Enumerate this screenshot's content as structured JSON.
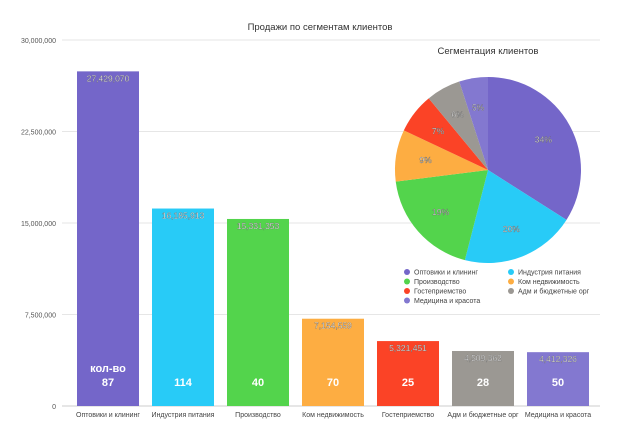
{
  "chart_data": [
    {
      "type": "bar",
      "title": "Продажи по сегментам клиентов",
      "categories": [
        "Оптовики и клининг",
        "Индустрия питания",
        "Производство",
        "Ком недвижимость",
        "Гостеприемство",
        "Адм и бюджетные орг",
        "Медицина и красота"
      ],
      "values": [
        27429070,
        16185913,
        15331353,
        7154559,
        5321451,
        4509362,
        4412326
      ],
      "value_labels": [
        "27,429,070",
        "16,185,913",
        "15,331,353",
        "7,154,559",
        "5,321,451",
        "4,509,362",
        "4,412,326"
      ],
      "counts_label": "кол-во",
      "counts": [
        "87",
        "114",
        "40",
        "70",
        "25",
        "28",
        "50"
      ],
      "colors": [
        "#7466c9",
        "#28cbf7",
        "#53d44c",
        "#fdad42",
        "#fb4326",
        "#9b9893",
        "#8378d0"
      ],
      "ylim": [
        0,
        30000000
      ],
      "yticks": [
        0,
        7500000,
        15000000,
        22500000,
        30000000
      ],
      "ytick_labels": [
        "0",
        "7,500,000",
        "15,000,000",
        "22,500,000",
        "30,000,000"
      ],
      "grid": true
    },
    {
      "type": "pie",
      "title": "Сегментация клиентов",
      "labels": [
        "Оптовики и клининг",
        "Индустрия питания",
        "Производство",
        "Ком недвижимость",
        "Гостеприемство",
        "Адм и бюджетные орг",
        "Медицина и красота"
      ],
      "values": [
        34,
        20,
        19,
        9,
        7,
        6,
        5
      ],
      "value_labels": [
        "34%",
        "20%",
        "19%",
        "9%",
        "7%",
        "6%",
        "5%"
      ],
      "colors": [
        "#7466c9",
        "#28cbf7",
        "#53d44c",
        "#fdad42",
        "#fb4326",
        "#9b9893",
        "#8378d0"
      ],
      "legend": "bottom"
    }
  ]
}
